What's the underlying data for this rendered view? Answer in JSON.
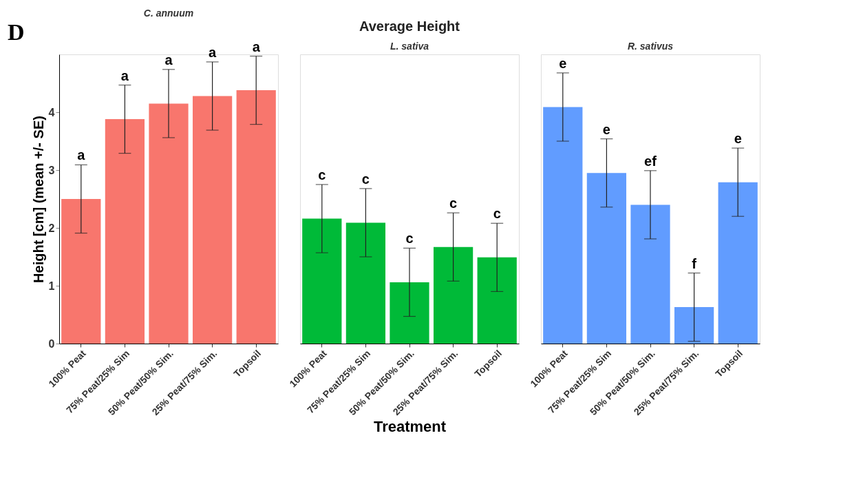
{
  "chart_data": [
    {
      "type": "bar",
      "subtitle": "C. annuum",
      "ylabel": "Height [cm] (mean +/- SE)",
      "categories": [
        "100% Peat",
        "75% Peat/25% Sim",
        "50% Peat/50% Sim.",
        "25% Peat/75% Sim.",
        "Topsoil"
      ],
      "values": [
        2.5,
        3.88,
        4.15,
        4.28,
        4.38
      ],
      "errors": [
        0.59,
        0.59,
        0.59,
        0.59,
        0.59
      ],
      "color": "#f8766d",
      "ylim": [
        0,
        5
      ],
      "yticks": [
        0,
        1,
        2,
        3,
        4
      ],
      "grid": false,
      "annotations": [
        "D",
        {
          "text": "a",
          "x": "100% Peat",
          "y": 3.09
        },
        {
          "text": "a",
          "x": "75% Peat/25% Sim",
          "y": 4.47
        },
        {
          "text": "a",
          "x": "50% Peat/50% Sim.",
          "y": 4.74
        },
        {
          "text": "a",
          "x": "25% Peat/75% Sim.",
          "y": 4.87
        },
        {
          "text": "a",
          "x": "Topsoil",
          "y": 4.97
        }
      ]
    },
    {
      "type": "bar",
      "title": "Average Height",
      "subtitle": "L. sativa",
      "xlabel": "Treatment",
      "categories": [
        "100% Peat",
        "75% Peat/25% Sim",
        "50% Peat/50% Sim.",
        "25% Peat/75% Sim.",
        "Topsoil"
      ],
      "values": [
        2.16,
        2.09,
        1.06,
        1.67,
        1.49
      ],
      "errors": [
        0.59,
        0.59,
        0.59,
        0.59,
        0.59
      ],
      "color": "#00ba38",
      "ylim": [
        0,
        5
      ],
      "grid": false,
      "tick_labels": "x",
      "annotations": [
        {
          "text": "c",
          "x": "100% Peat",
          "y": 2.75
        },
        {
          "text": "c",
          "x": "75% Peat/25% Sim",
          "y": 2.68
        },
        {
          "text": "c",
          "x": "50% Peat/50% Sim.",
          "y": 1.65
        },
        {
          "text": "c",
          "x": "25% Peat/75% Sim.",
          "y": 2.26
        },
        {
          "text": "c",
          "x": "Topsoil",
          "y": 2.08
        }
      ]
    },
    {
      "type": "bar",
      "subtitle": "R. sativus",
      "categories": [
        "100% Peat",
        "75% Peat/25% Sim",
        "50% Peat/50% Sim.",
        "25% Peat/75% Sim.",
        "Topsoil"
      ],
      "values": [
        4.09,
        2.95,
        2.4,
        0.63,
        2.79
      ],
      "errors": [
        0.59,
        0.59,
        0.59,
        0.59,
        0.59
      ],
      "color": "#619cff",
      "ylim": [
        0,
        5
      ],
      "grid": false,
      "tick_labels": "x",
      "annotations": [
        {
          "text": "e",
          "x": "100% Peat",
          "y": 4.68
        },
        {
          "text": "e",
          "x": "75% Peat/25% Sim",
          "y": 3.54
        },
        {
          "text": "ef",
          "x": "50% Peat/50% Sim.",
          "y": 2.99
        },
        {
          "text": "f",
          "x": "25% Peat/75% Sim.",
          "y": 1.22
        },
        {
          "text": "e",
          "x": "Topsoil",
          "y": 3.38
        }
      ]
    }
  ]
}
